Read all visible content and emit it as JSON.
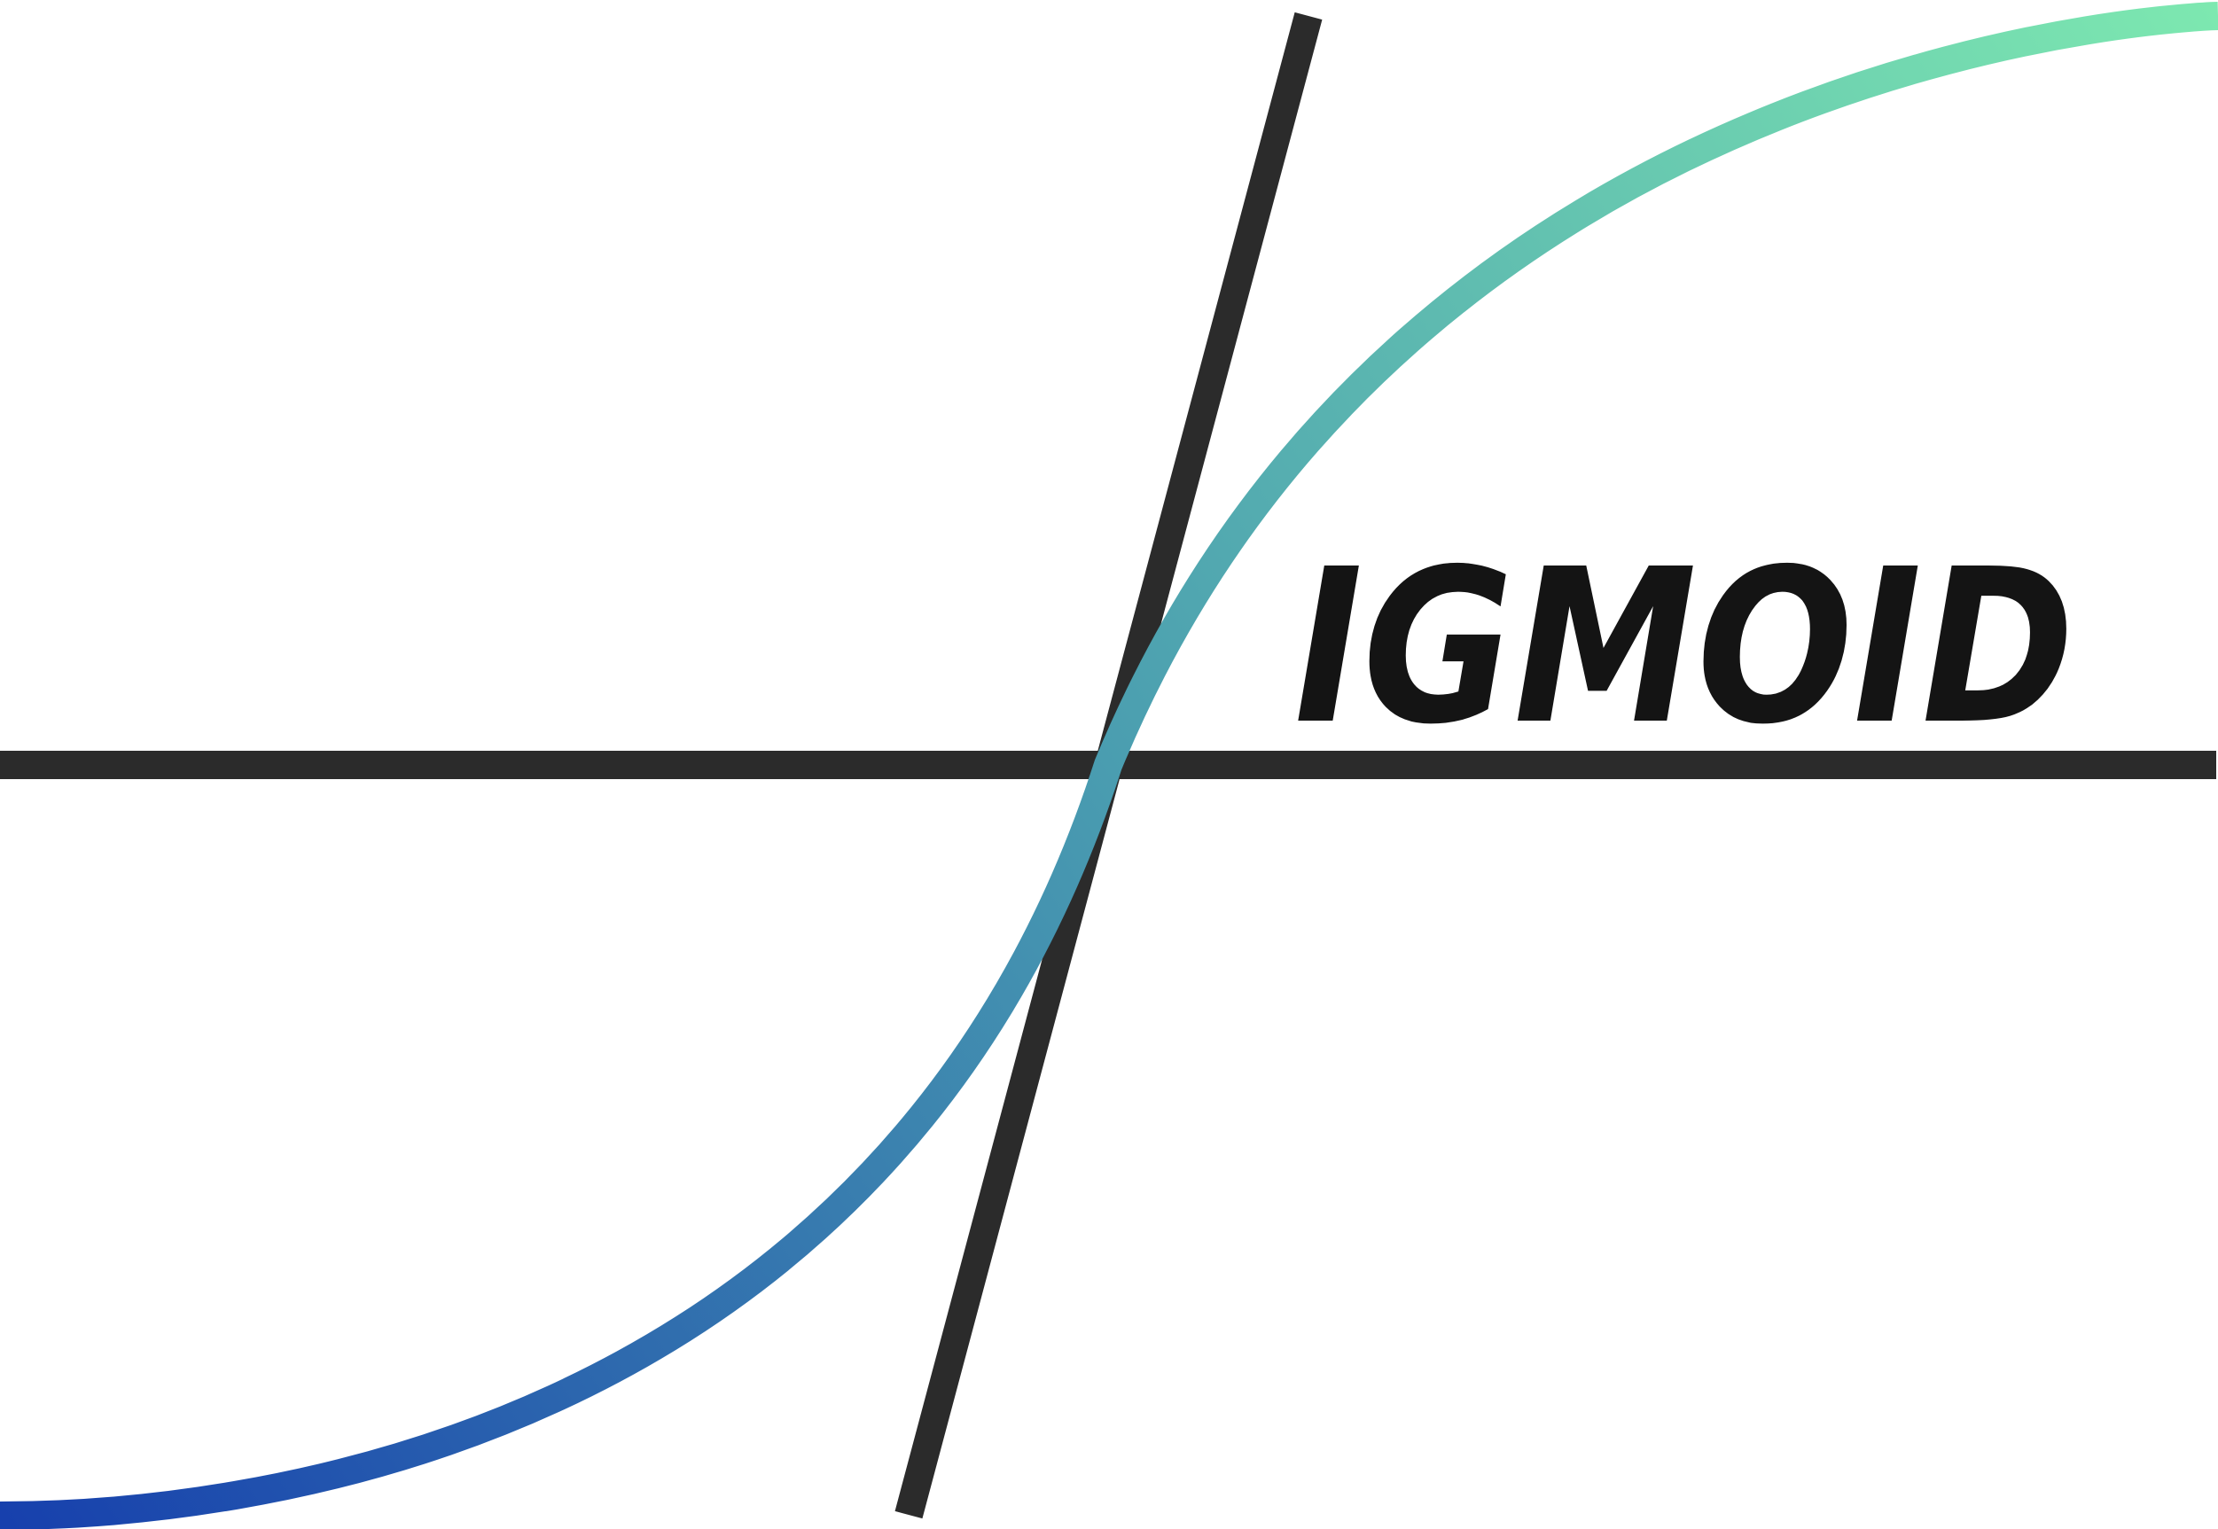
{
  "logo": {
    "wordmark": "IGMOID",
    "colors": {
      "background": "#ffffff",
      "axis": "#2b2b2b",
      "text": "#141414",
      "curve_start": "#1740ad",
      "curve_mid": "#4a9db0",
      "curve_end": "#7de8b0"
    }
  }
}
